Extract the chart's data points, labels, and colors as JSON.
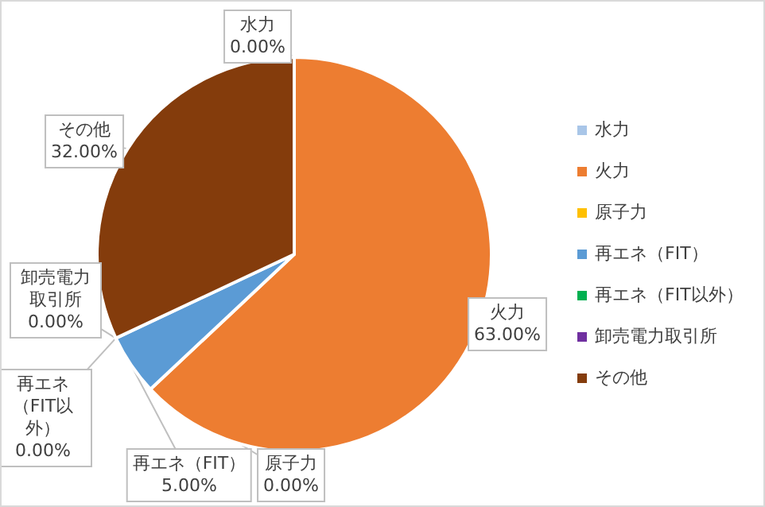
{
  "chart_data": {
    "type": "pie",
    "categories": [
      "水力",
      "火力",
      "原子力",
      "再エネ（FIT）",
      "再エネ（FIT以外）",
      "卸売電力取引所",
      "その他"
    ],
    "values": [
      0,
      63,
      0,
      5,
      0,
      0,
      32
    ],
    "value_labels": [
      "0.00%",
      "63.00%",
      "0.00%",
      "5.00%",
      "0.00%",
      "0.00%",
      "32.00%"
    ],
    "colors": [
      "#a9c6e8",
      "#ed7d31",
      "#ffc000",
      "#5b9bd5",
      "#00b050",
      "#7030a0",
      "#843c0c"
    ],
    "legend": "right"
  }
}
